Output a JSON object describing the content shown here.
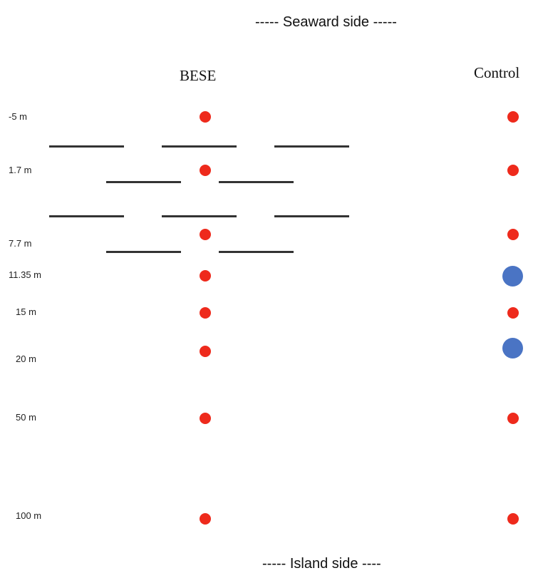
{
  "header": {
    "seaward_label": "----- Seaward side -----"
  },
  "footer": {
    "island_label": "----- Island side ----"
  },
  "columns": {
    "bese_title": "BESE",
    "control_title": "Control"
  },
  "distances": [
    "-5 m",
    "1.7 m",
    "7.7 m",
    "11.35 m",
    "15 m",
    "20 m",
    "50 m",
    "100 m"
  ],
  "colors": {
    "red_marker": "#ee2a1c",
    "blue_marker": "#4a74c4",
    "barrier": "#333333"
  },
  "bese_markers": [
    "red",
    "red",
    "red",
    "red",
    "red",
    "red",
    "red",
    "red"
  ],
  "control_markers": [
    "red",
    "red",
    "red",
    "blue",
    "red",
    "blue",
    "red",
    "red"
  ],
  "barrier_rows": 4
}
